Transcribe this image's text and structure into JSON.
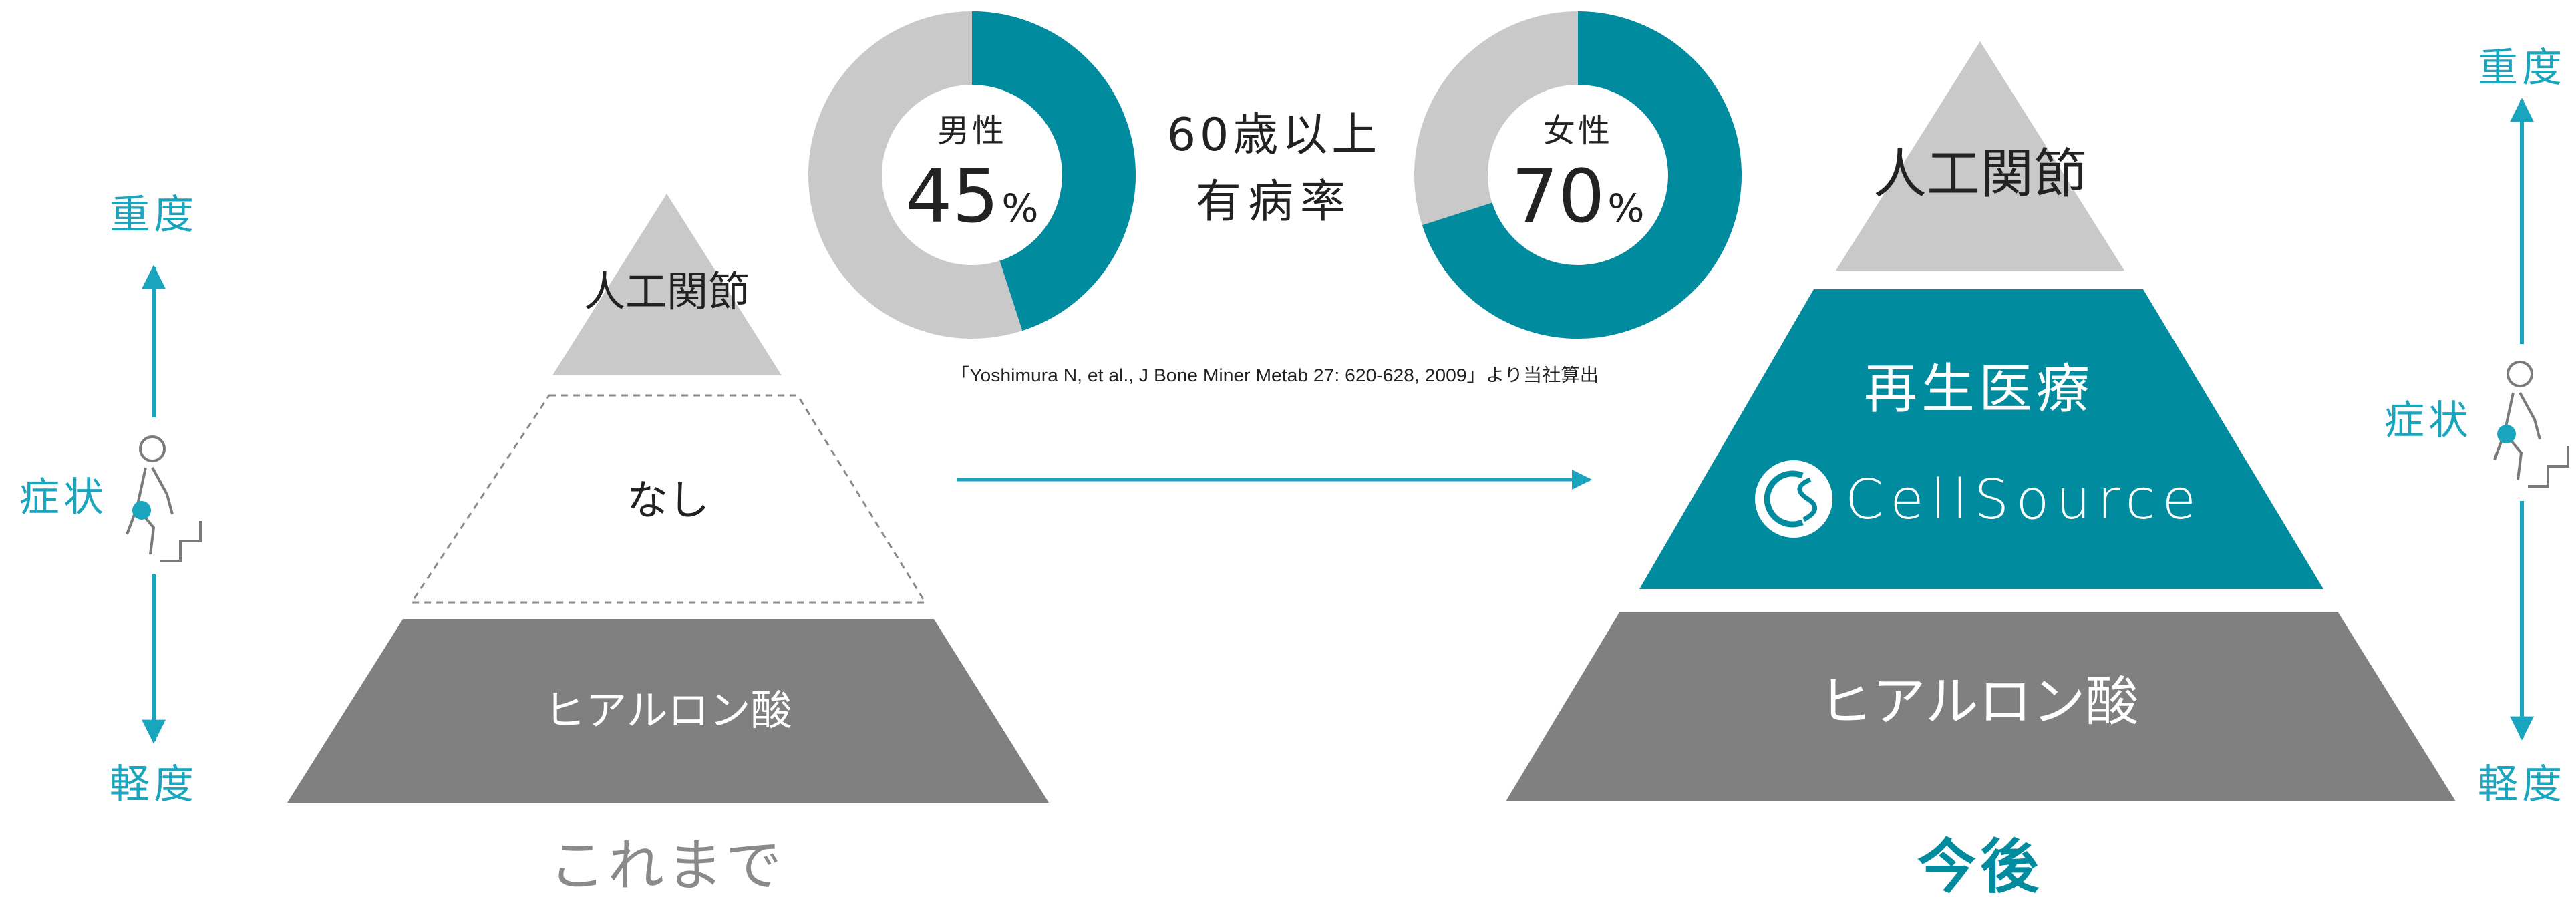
{
  "colors": {
    "teal": "#008b9f",
    "cyan": "#1aa5be",
    "light_gray": "#c9c9c9",
    "dark_gray": "#808080",
    "ink": "#222222",
    "white": "#ffffff"
  },
  "severity_scale": {
    "top_label": "重度",
    "middle_label": "症状",
    "bottom_label": "軽度"
  },
  "left_pyramid": {
    "top": "人工関節",
    "middle": "なし",
    "bottom": "ヒアルロン酸",
    "caption": "これまで"
  },
  "right_pyramid": {
    "top": "人工関節",
    "middle": "再生医療",
    "brand": "CellSource",
    "bottom": "ヒアルロン酸",
    "caption": "今後"
  },
  "prevalence": {
    "title_line1": "60歳以上",
    "title_line2": "有病率",
    "male": {
      "label": "男性",
      "value": 45,
      "unit": "%"
    },
    "female": {
      "label": "女性",
      "value": 70,
      "unit": "%"
    },
    "citation": "「Yoshimura N, et al., J Bone Miner Metab 27: 620-628, 2009」より当社算出"
  }
}
